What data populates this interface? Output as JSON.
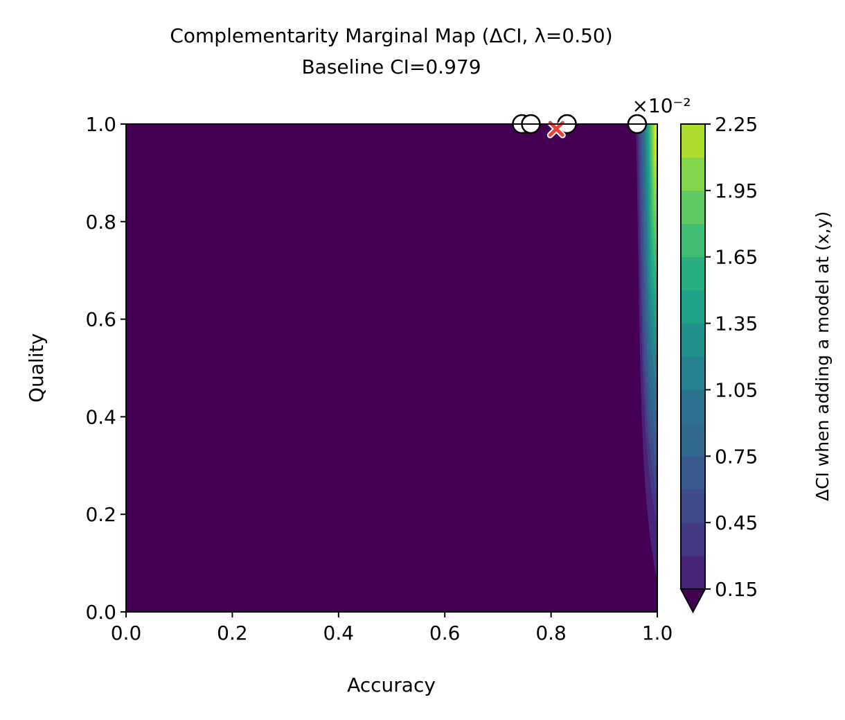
{
  "chart_data": {
    "type": "heatmap",
    "title": "Complementarity Marginal Map (ΔCI, λ=0.50)",
    "subtitle": "Baseline CI=0.979",
    "xlabel": "Accuracy",
    "ylabel": "Quality",
    "xlim": [
      0.0,
      1.0
    ],
    "ylim": [
      0.0,
      1.0
    ],
    "x_ticks": [
      "0.0",
      "0.2",
      "0.4",
      "0.6",
      "0.8",
      "1.0"
    ],
    "y_ticks": [
      "0.0",
      "0.2",
      "0.4",
      "0.6",
      "0.8",
      "1.0"
    ],
    "colorbar": {
      "label": "ΔCI when adding a model at (x,y)",
      "scale_label": "×10⁻²",
      "levels": [
        0.15,
        0.3,
        0.45,
        0.6,
        0.75,
        0.9,
        1.05,
        1.2,
        1.35,
        1.5,
        1.65,
        1.8,
        1.95,
        2.1,
        2.25
      ],
      "tick_labels": [
        "0.15",
        "0.45",
        "0.75",
        "1.05",
        "1.35",
        "1.65",
        "1.95",
        "2.25"
      ],
      "colors": [
        "#472476",
        "#443a83",
        "#3e4c8a",
        "#38598c",
        "#31688e",
        "#2c728e",
        "#26828e",
        "#21918c",
        "#1fa188",
        "#28ae80",
        "#3fbc73",
        "#5ec962",
        "#84d44b",
        "#addc30",
        "#d8e219",
        "#fde725"
      ],
      "under_color": "#440154",
      "extend": "min"
    },
    "field_note_values": {
      "background_value": "below 0.15",
      "hot_edge_x_start": 0.96
    },
    "existing_models": [
      {
        "x": 0.745,
        "y": 1.0
      },
      {
        "x": 0.762,
        "y": 1.0
      },
      {
        "x": 0.83,
        "y": 1.0
      },
      {
        "x": 0.962,
        "y": 1.0
      }
    ],
    "best_point": {
      "x": 0.81,
      "y": 0.99,
      "color": "#e8443a"
    }
  }
}
